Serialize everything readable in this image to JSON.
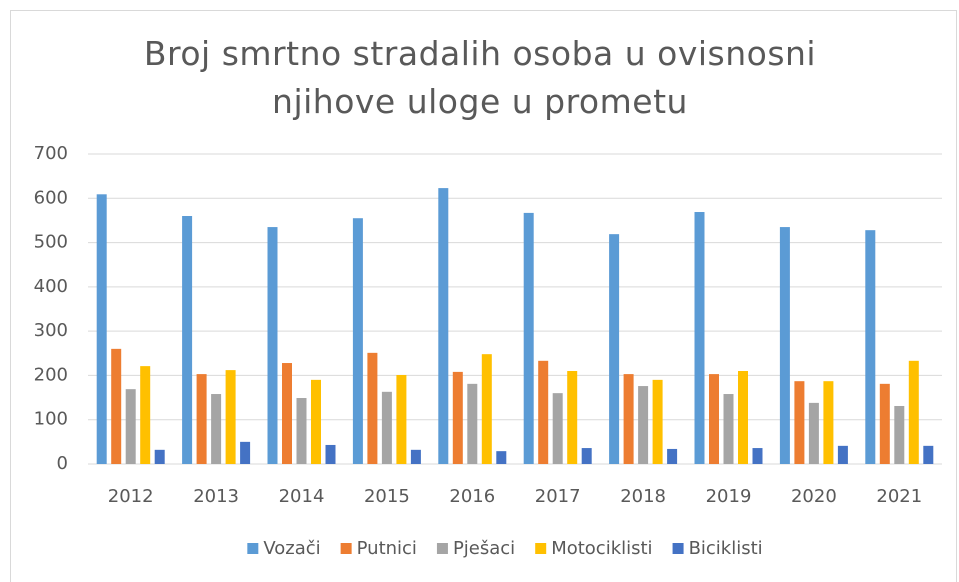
{
  "chart_data": {
    "type": "bar",
    "title": "Broj smrtno stradalih osoba u ovisnosni njihove uloge u prometu",
    "categories": [
      "2012",
      "2013",
      "2014",
      "2015",
      "2016",
      "2017",
      "2018",
      "2019",
      "2020",
      "2021"
    ],
    "series": [
      {
        "name": "Vozači",
        "color": "#5b9bd5",
        "values": [
          609,
          560,
          535,
          555,
          623,
          567,
          519,
          569,
          535,
          528
        ]
      },
      {
        "name": "Putnici",
        "color": "#ed7d31",
        "values": [
          260,
          203,
          228,
          251,
          208,
          233,
          203,
          203,
          187,
          181
        ]
      },
      {
        "name": "Pješaci",
        "color": "#a5a5a5",
        "values": [
          169,
          158,
          149,
          163,
          181,
          160,
          176,
          158,
          138,
          131
        ]
      },
      {
        "name": "Motociklisti",
        "color": "#ffc000",
        "values": [
          221,
          212,
          190,
          201,
          248,
          210,
          190,
          210,
          187,
          233
        ]
      },
      {
        "name": "Biciklisti",
        "color": "#4472c4",
        "values": [
          32,
          50,
          43,
          32,
          29,
          36,
          34,
          36,
          41,
          41
        ]
      }
    ],
    "ylim": [
      0,
      700
    ],
    "yticks": [
      0,
      100,
      200,
      300,
      400,
      500,
      600,
      700
    ],
    "grid": true,
    "legend": "bottom"
  }
}
